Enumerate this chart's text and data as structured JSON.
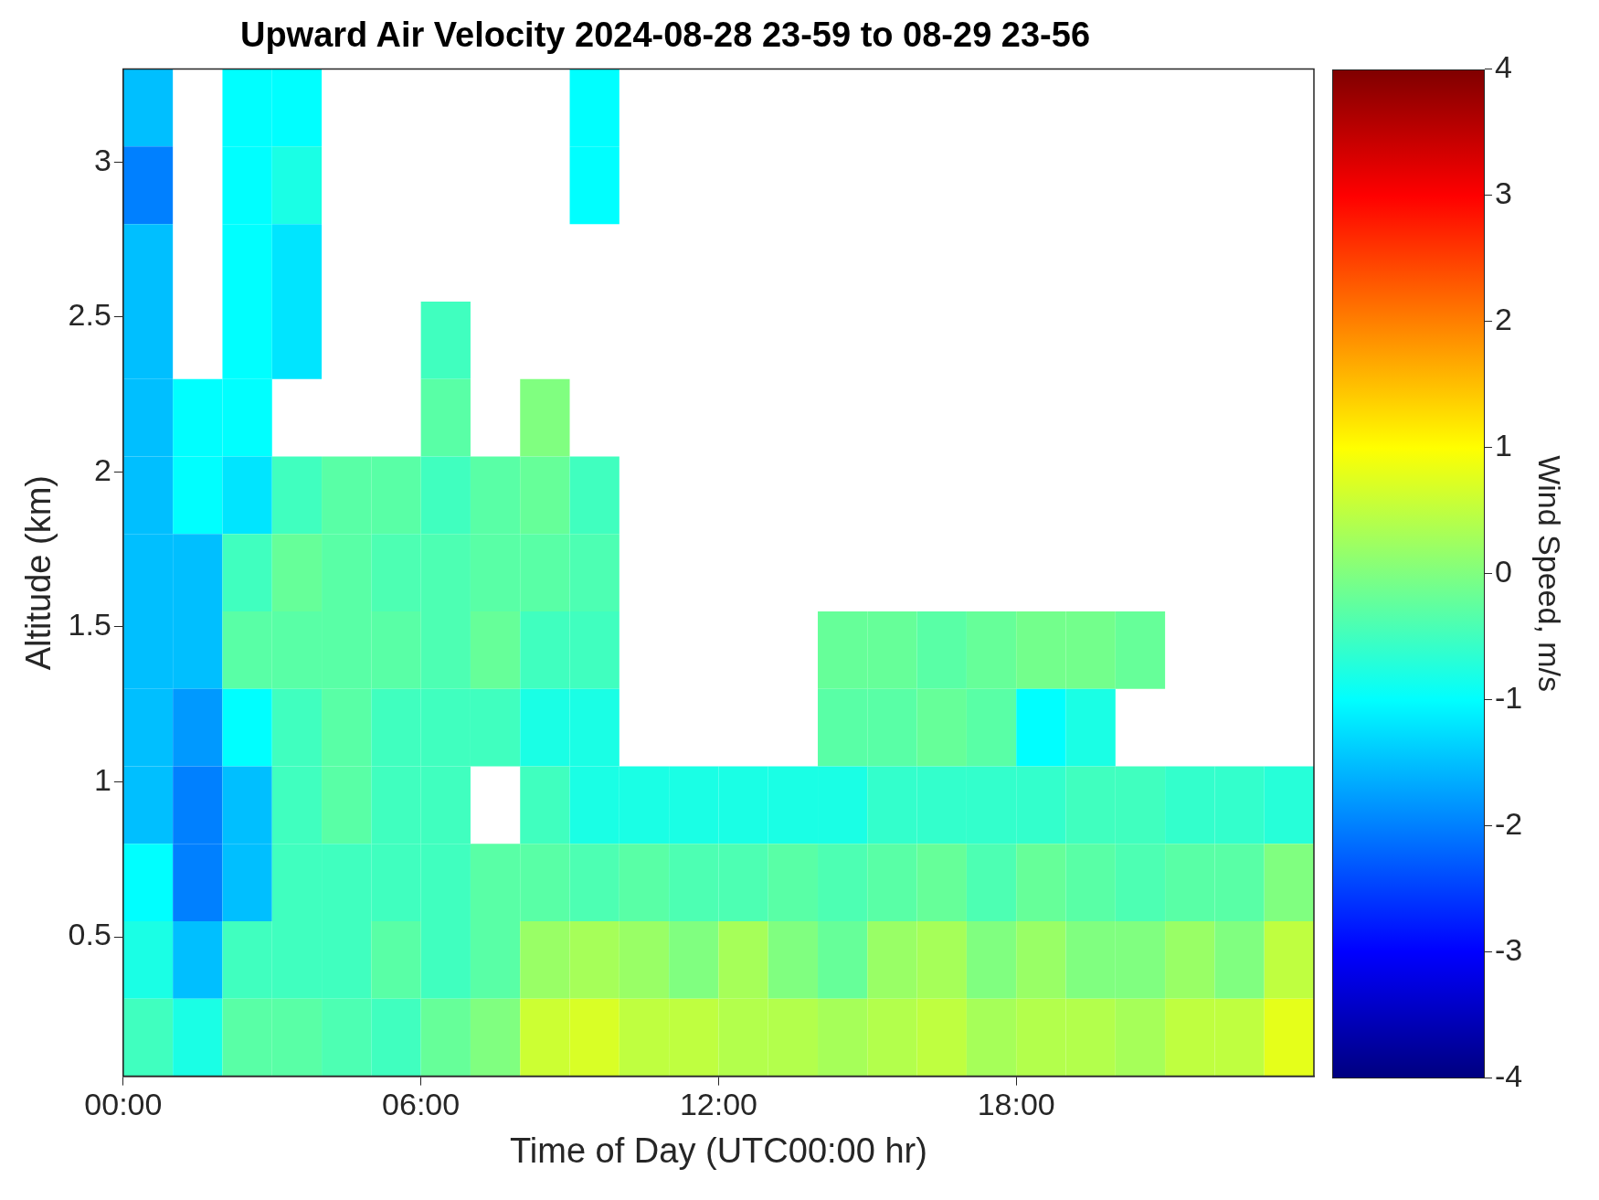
{
  "chart_data": {
    "type": "heatmap",
    "title": "Upward Air Velocity 2024-08-28 23-59 to 08-29 23-56",
    "xlabel": "Time of Day (UTC00:00 hr)",
    "ylabel": "Altitude (km)",
    "clabel": "Wind Speed, m/s",
    "x": [
      0.5,
      1.5,
      2.5,
      3.5,
      4.5,
      5.5,
      6.5,
      7.5,
      8.5,
      9.5,
      10.5,
      11.5,
      12.5,
      13.5,
      14.5,
      15.5,
      16.5,
      17.5,
      18.5,
      19.5,
      20.5,
      21.5,
      22.5,
      23.5
    ],
    "xlim": [
      0,
      24
    ],
    "xticks": [
      {
        "value": 0,
        "label": "00:00"
      },
      {
        "value": 6,
        "label": "06:00"
      },
      {
        "value": 12,
        "label": "12:00"
      },
      {
        "value": 18,
        "label": "18:00"
      }
    ],
    "ylim": [
      0.05,
      3.3
    ],
    "yticks": [
      0.5,
      1,
      1.5,
      2,
      2.5,
      3
    ],
    "cells": [
      [
        -1.5,
        null,
        -1,
        -1,
        null,
        null,
        null,
        null,
        null,
        -1,
        null,
        null,
        null,
        null,
        null,
        null,
        null,
        null,
        null,
        null,
        null,
        null,
        null,
        null
      ],
      [
        -2,
        null,
        -1,
        -0.8,
        null,
        null,
        null,
        null,
        null,
        -1,
        null,
        null,
        null,
        null,
        null,
        null,
        null,
        null,
        null,
        null,
        null,
        null,
        null,
        null
      ],
      [
        -1.5,
        null,
        -1,
        -1.2,
        null,
        null,
        null,
        null,
        null,
        null,
        null,
        null,
        null,
        null,
        null,
        null,
        null,
        null,
        null,
        null,
        null,
        null,
        null,
        null
      ],
      [
        -1.5,
        null,
        -1,
        -1.2,
        null,
        null,
        -0.5,
        null,
        null,
        null,
        null,
        null,
        null,
        null,
        null,
        null,
        null,
        null,
        null,
        null,
        null,
        null,
        null,
        null
      ],
      [
        -1.5,
        -1,
        -1,
        null,
        null,
        null,
        -0.3,
        null,
        0,
        null,
        null,
        null,
        null,
        null,
        null,
        null,
        null,
        null,
        null,
        null,
        null,
        null,
        null,
        null
      ],
      [
        -1.5,
        -1,
        -1.2,
        -0.5,
        -0.3,
        -0.3,
        -0.5,
        -0.3,
        -0.2,
        -0.5,
        null,
        null,
        null,
        null,
        null,
        null,
        null,
        null,
        null,
        null,
        null,
        null,
        null,
        null
      ],
      [
        -1.5,
        -1.5,
        -0.5,
        -0.2,
        -0.3,
        -0.4,
        -0.4,
        -0.3,
        -0.3,
        -0.4,
        null,
        null,
        null,
        null,
        null,
        null,
        null,
        null,
        null,
        null,
        null,
        null,
        null,
        null
      ],
      [
        -1.5,
        -1.5,
        -0.3,
        -0.3,
        -0.3,
        -0.3,
        -0.4,
        -0.2,
        -0.5,
        -0.5,
        null,
        null,
        null,
        null,
        -0.2,
        -0.2,
        -0.3,
        -0.2,
        -0.1,
        -0.1,
        -0.2,
        null,
        null,
        null
      ],
      [
        -1.5,
        -1.8,
        -1,
        -0.5,
        -0.3,
        -0.5,
        -0.5,
        -0.5,
        -0.8,
        -0.8,
        null,
        null,
        null,
        null,
        -0.3,
        -0.3,
        -0.2,
        -0.3,
        -1,
        -0.8,
        null,
        null,
        null,
        null
      ],
      [
        -1.5,
        -2,
        -1.5,
        -0.5,
        -0.3,
        -0.5,
        -0.5,
        null,
        -0.5,
        -0.8,
        -0.8,
        -0.8,
        -0.8,
        -0.8,
        -0.8,
        -0.6,
        -0.6,
        -0.6,
        -0.6,
        -0.5,
        -0.5,
        -0.6,
        -0.6,
        -0.7
      ],
      [
        -1,
        -2,
        -1.5,
        -0.5,
        -0.5,
        -0.5,
        -0.5,
        -0.3,
        -0.3,
        -0.4,
        -0.3,
        -0.4,
        -0.4,
        -0.3,
        -0.4,
        -0.3,
        -0.2,
        -0.4,
        -0.2,
        -0.3,
        -0.4,
        -0.3,
        -0.3,
        0
      ],
      [
        -0.8,
        -1.5,
        -0.5,
        -0.5,
        -0.5,
        -0.3,
        -0.5,
        -0.3,
        0.2,
        0.3,
        0.2,
        0,
        0.3,
        0,
        -0.2,
        0.2,
        0.3,
        0,
        0.2,
        0,
        0,
        0.2,
        0,
        0.5
      ],
      [
        -0.5,
        -0.8,
        -0.3,
        -0.3,
        -0.4,
        -0.5,
        -0.2,
        0,
        0.6,
        0.7,
        0.5,
        0.5,
        0.4,
        0.4,
        0.3,
        0.4,
        0.5,
        0.3,
        0.4,
        0.4,
        0.3,
        0.5,
        0.5,
        0.8
      ]
    ],
    "clim": [
      -4,
      4
    ],
    "cticks": [
      -4,
      -3,
      -2,
      -1,
      0,
      1,
      2,
      3,
      4
    ]
  }
}
